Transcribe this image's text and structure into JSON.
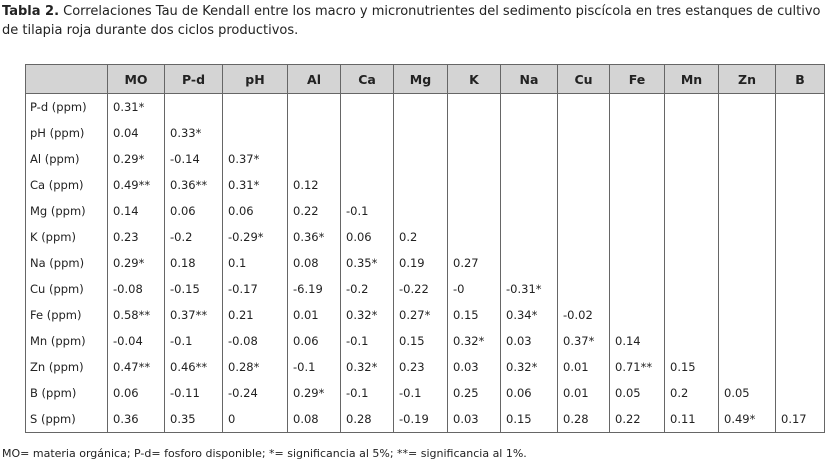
{
  "title": {
    "label": "Tabla 2.",
    "text": "Correlaciones Tau de Kendall entre los macro y micronutrientes del sedimento piscícola en tres estanques de cultivo de tilapia roja durante dos ciclos productivos."
  },
  "table": {
    "columns": [
      "MO",
      "P-d",
      "pH",
      "Al",
      "Ca",
      "Mg",
      "K",
      "Na",
      "Cu",
      "Fe",
      "Mn",
      "Zn",
      "B"
    ],
    "rows": [
      {
        "label": "P-d (ppm)",
        "values": [
          "0.31*"
        ]
      },
      {
        "label": "pH (ppm)",
        "values": [
          "0.04",
          "0.33*"
        ]
      },
      {
        "label": "Al (ppm)",
        "values": [
          "0.29*",
          "-0.14",
          "0.37*"
        ]
      },
      {
        "label": "Ca (ppm)",
        "values": [
          "0.49**",
          "0.36**",
          "0.31*",
          "0.12"
        ]
      },
      {
        "label": "Mg (ppm)",
        "values": [
          "0.14",
          "0.06",
          "0.06",
          "0.22",
          "-0.1"
        ]
      },
      {
        "label": "K (ppm)",
        "values": [
          "0.23",
          "-0.2",
          "-0.29*",
          "0.36*",
          "0.06",
          "0.2"
        ]
      },
      {
        "label": "Na (ppm)",
        "values": [
          "0.29*",
          "0.18",
          "0.1",
          "0.08",
          "0.35*",
          "0.19",
          "0.27"
        ]
      },
      {
        "label": "Cu (ppm)",
        "values": [
          "-0.08",
          "-0.15",
          "-0.17",
          "-6.19",
          "-0.2",
          "-0.22",
          "-0",
          "-0.31*"
        ]
      },
      {
        "label": "Fe (ppm)",
        "values": [
          "0.58**",
          "0.37**",
          "0.21",
          "0.01",
          "0.32*",
          "0.27*",
          "0.15",
          "0.34*",
          "-0.02"
        ]
      },
      {
        "label": "Mn (ppm)",
        "values": [
          "-0.04",
          "-0.1",
          "-0.08",
          "0.06",
          "-0.1",
          "0.15",
          "0.32*",
          "0.03",
          "0.37*",
          "0.14"
        ]
      },
      {
        "label": "Zn (ppm)",
        "values": [
          "0.47**",
          "0.46**",
          "0.28*",
          "-0.1",
          "0.32*",
          "0.23",
          "0.03",
          "0.32*",
          "0.01",
          "0.71**",
          "0.15"
        ]
      },
      {
        "label": "B (ppm)",
        "values": [
          "0.06",
          "-0.11",
          "-0.24",
          "0.29*",
          "-0.1",
          "-0.1",
          "0.25",
          "0.06",
          "0.01",
          "0.05",
          "0.2",
          "0.05"
        ]
      },
      {
        "label": "S (ppm)",
        "values": [
          "0.36",
          "0.35",
          "0",
          "0.08",
          "0.28",
          "-0.19",
          "0.03",
          "0.15",
          "0.28",
          "0.22",
          "0.11",
          "0.49*",
          "0.17"
        ]
      }
    ]
  },
  "footnote": "MO= materia orgánica; P-d= fosforo disponible; *= significancia al 5%; **= significancia al 1%."
}
